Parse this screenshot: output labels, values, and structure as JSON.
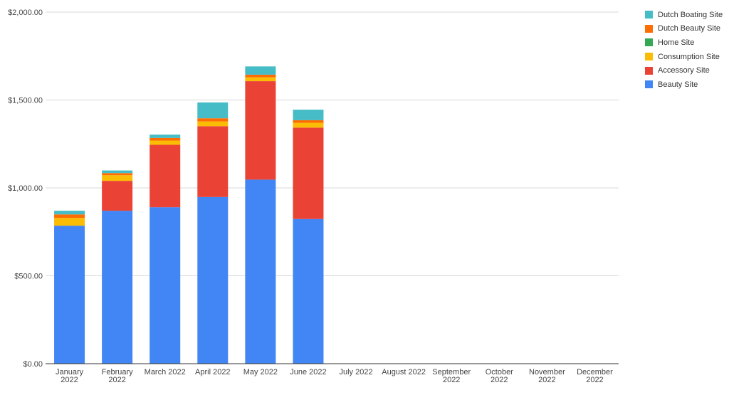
{
  "chart_data": {
    "type": "bar",
    "stacked": true,
    "categories": [
      [
        "January",
        "2022"
      ],
      [
        "February",
        "2022"
      ],
      [
        "March 2022"
      ],
      [
        "April 2022"
      ],
      [
        "May 2022"
      ],
      [
        "June 2022"
      ],
      [
        "July 2022"
      ],
      [
        "August 2022"
      ],
      [
        "September",
        "2022"
      ],
      [
        "October",
        "2022"
      ],
      [
        "November",
        "2022"
      ],
      [
        "December",
        "2022"
      ]
    ],
    "series": [
      {
        "name": "Beauty Site",
        "color": "#4285F4",
        "values": [
          785,
          870,
          890,
          948,
          1047,
          823,
          0,
          0,
          0,
          0,
          0,
          0
        ]
      },
      {
        "name": "Accessory Site",
        "color": "#EA4335",
        "values": [
          0,
          170,
          355,
          403,
          560,
          520,
          0,
          0,
          0,
          0,
          0,
          0
        ]
      },
      {
        "name": "Consumption Site",
        "color": "#FBBC04",
        "values": [
          44,
          32,
          24,
          27,
          22,
          27,
          0,
          0,
          0,
          0,
          0,
          0
        ]
      },
      {
        "name": "Home Site",
        "color": "#34A853",
        "values": [
          0,
          0,
          0,
          0,
          0,
          0,
          0,
          0,
          0,
          0,
          0,
          0
        ]
      },
      {
        "name": "Dutch Beauty Site",
        "color": "#FF6D01",
        "values": [
          20,
          12,
          15,
          18,
          15,
          15,
          0,
          0,
          0,
          0,
          0,
          0
        ]
      },
      {
        "name": "Dutch Boating Site",
        "color": "#46BDC6",
        "values": [
          21,
          15,
          19,
          90,
          47,
          60,
          0,
          0,
          0,
          0,
          0,
          0
        ]
      }
    ],
    "y_ticks": [
      "$0.00",
      "$500.00",
      "$1,000.00",
      "$1,500.00",
      "$2,000.00"
    ],
    "ylim": [
      0,
      2000
    ],
    "grid": true,
    "legend_position": "top-right"
  }
}
